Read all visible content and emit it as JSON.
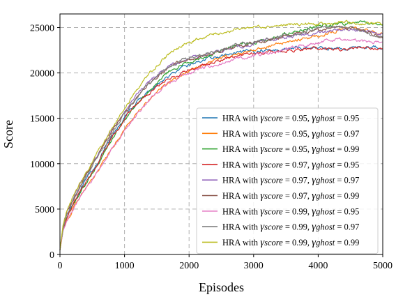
{
  "chart_data": {
    "type": "line",
    "title": "",
    "xlabel": "Episodes",
    "ylabel": "Score",
    "xlim": [
      0,
      5000
    ],
    "ylim": [
      0,
      26500
    ],
    "xticks": [
      0,
      1000,
      2000,
      3000,
      4000,
      5000
    ],
    "xtick_labels": [
      "0",
      "1000",
      "2000",
      "3000",
      "4000",
      "5000"
    ],
    "yticks": [
      0,
      5000,
      10000,
      15000,
      20000,
      25000
    ],
    "ytick_labels": [
      "0",
      "5000",
      "10000",
      "15000",
      "20000",
      "25000"
    ],
    "grid": true,
    "legend_position": "lower-right",
    "x": [
      0,
      50,
      100,
      200,
      300,
      400,
      500,
      600,
      700,
      800,
      900,
      1000,
      1100,
      1200,
      1300,
      1400,
      1500,
      1600,
      1700,
      1800,
      1900,
      2000,
      2200,
      2400,
      2600,
      2800,
      3000,
      3200,
      3400,
      3600,
      3800,
      4000,
      4200,
      4400,
      4600,
      4800,
      5000
    ],
    "series": [
      {
        "name": "HRA with γscore = 0.95,  γghost = 0.95",
        "color": "#1f77b4",
        "values": [
          500,
          3000,
          4200,
          5600,
          6900,
          8100,
          9200,
          10400,
          11600,
          12900,
          14000,
          15100,
          16000,
          16800,
          17500,
          18100,
          18700,
          19200,
          19700,
          20100,
          20500,
          20900,
          21400,
          21700,
          22000,
          22200,
          22400,
          22500,
          22600,
          22700,
          22750,
          22800,
          22700,
          22600,
          22900,
          22800,
          22900
        ]
      },
      {
        "name": "HRA with γscore = 0.95,  γghost = 0.97",
        "color": "#ff7f0e",
        "values": [
          500,
          2600,
          3700,
          5000,
          6200,
          7300,
          8300,
          9400,
          10500,
          11600,
          12700,
          13800,
          14800,
          15700,
          16500,
          17200,
          17900,
          18500,
          19000,
          19400,
          19800,
          20200,
          20900,
          21400,
          21800,
          22200,
          22600,
          22900,
          23200,
          23500,
          23800,
          24100,
          24500,
          24800,
          25000,
          24600,
          24200
        ]
      },
      {
        "name": "HRA with γscore = 0.95,  γghost = 0.99",
        "color": "#2ca02c",
        "values": [
          500,
          2800,
          3900,
          5300,
          6600,
          7800,
          9000,
          10200,
          11400,
          12600,
          13700,
          14800,
          15800,
          16700,
          17500,
          18300,
          19000,
          19600,
          20100,
          20500,
          20900,
          21200,
          21700,
          22200,
          22700,
          23100,
          23400,
          23700,
          24100,
          24500,
          24900,
          25200,
          25300,
          25400,
          25600,
          25500,
          25300
        ]
      },
      {
        "name": "HRA with γscore = 0.97,  γghost = 0.95",
        "color": "#d62728",
        "values": [
          500,
          2900,
          4000,
          5400,
          6700,
          7900,
          9100,
          10300,
          11500,
          12700,
          13800,
          14900,
          15800,
          16600,
          17300,
          17900,
          18500,
          19000,
          19400,
          19700,
          20000,
          20300,
          20800,
          21200,
          21600,
          21900,
          22100,
          22300,
          22400,
          22500,
          22600,
          22700,
          22600,
          22500,
          22800,
          22700,
          22600
        ]
      },
      {
        "name": "HRA with γscore = 0.97,  γghost = 0.97",
        "color": "#9467bd",
        "values": [
          500,
          3300,
          4600,
          6100,
          7500,
          8800,
          10000,
          11200,
          12400,
          13600,
          14700,
          15800,
          16800,
          17700,
          18500,
          19200,
          19800,
          20300,
          20700,
          21000,
          21300,
          21500,
          21900,
          22300,
          22600,
          22900,
          23200,
          23500,
          23800,
          24000,
          24200,
          24400,
          24600,
          24800,
          24700,
          24500,
          24300
        ]
      },
      {
        "name": "HRA with γscore = 0.97,  γghost = 0.99",
        "color": "#8c564b",
        "values": [
          500,
          3200,
          4500,
          6000,
          7400,
          8700,
          9900,
          11100,
          12300,
          13500,
          14600,
          15600,
          16500,
          17400,
          18200,
          18900,
          19500,
          20100,
          20600,
          21000,
          21300,
          21500,
          21900,
          22300,
          22700,
          23000,
          23300,
          23600,
          23900,
          24200,
          24500,
          24700,
          24900,
          25100,
          24800,
          24400,
          23900
        ]
      },
      {
        "name": "HRA with γscore = 0.99,  γghost = 0.95",
        "color": "#e377c2",
        "values": [
          500,
          2500,
          3600,
          4900,
          6100,
          7200,
          8200,
          9300,
          10400,
          11500,
          12600,
          13600,
          14600,
          15500,
          16300,
          17100,
          17800,
          18400,
          18900,
          19300,
          19700,
          20000,
          20500,
          20900,
          21300,
          21600,
          21900,
          22200,
          22500,
          22800,
          23100,
          23400,
          23600,
          23800,
          23600,
          23400,
          23500
        ]
      },
      {
        "name": "HRA with γscore = 0.99,  γghost = 0.97",
        "color": "#7f7f7f",
        "values": [
          500,
          3100,
          4400,
          5800,
          7200,
          8500,
          9700,
          10900,
          12100,
          13300,
          14400,
          15500,
          16500,
          17400,
          18200,
          18900,
          19600,
          20200,
          20700,
          21100,
          21400,
          21600,
          22000,
          22400,
          22800,
          23100,
          23400,
          23700,
          24000,
          24300,
          24600,
          24900,
          25100,
          25200,
          24800,
          24300,
          23800
        ]
      },
      {
        "name": "HRA with γscore = 0.99,  γghost = 0.99",
        "color": "#bcbd22",
        "values": [
          500,
          3300,
          4700,
          6300,
          7700,
          9000,
          10200,
          11500,
          12700,
          13900,
          15000,
          16100,
          17200,
          18200,
          19100,
          20000,
          20800,
          21500,
          22100,
          22600,
          23000,
          23400,
          23900,
          24300,
          24600,
          24900,
          25100,
          25200,
          25200,
          25300,
          25400,
          25300,
          25400,
          25600,
          25400,
          25500,
          25300
        ]
      }
    ],
    "legend": [
      {
        "prefix": "HRA with ",
        "g1": "γ",
        "s1": "score",
        "v1": " = 0.95,  ",
        "g2": "γ",
        "s2": "ghost",
        "v2": " = 0.95"
      },
      {
        "prefix": "HRA with ",
        "g1": "γ",
        "s1": "score",
        "v1": " = 0.95,  ",
        "g2": "γ",
        "s2": "ghost",
        "v2": " = 0.97"
      },
      {
        "prefix": "HRA with ",
        "g1": "γ",
        "s1": "score",
        "v1": " = 0.95,  ",
        "g2": "γ",
        "s2": "ghost",
        "v2": " = 0.99"
      },
      {
        "prefix": "HRA with ",
        "g1": "γ",
        "s1": "score",
        "v1": " = 0.97,  ",
        "g2": "γ",
        "s2": "ghost",
        "v2": " = 0.95"
      },
      {
        "prefix": "HRA with ",
        "g1": "γ",
        "s1": "score",
        "v1": " = 0.97,  ",
        "g2": "γ",
        "s2": "ghost",
        "v2": " = 0.97"
      },
      {
        "prefix": "HRA with ",
        "g1": "γ",
        "s1": "score",
        "v1": " = 0.97,  ",
        "g2": "γ",
        "s2": "ghost",
        "v2": " = 0.99"
      },
      {
        "prefix": "HRA with ",
        "g1": "γ",
        "s1": "score",
        "v1": " = 0.99,  ",
        "g2": "γ",
        "s2": "ghost",
        "v2": " = 0.95"
      },
      {
        "prefix": "HRA with ",
        "g1": "γ",
        "s1": "score",
        "v1": " = 0.99,  ",
        "g2": "γ",
        "s2": "ghost",
        "v2": " = 0.97"
      },
      {
        "prefix": "HRA with ",
        "g1": "γ",
        "s1": "score",
        "v1": " = 0.99,  ",
        "g2": "γ",
        "s2": "ghost",
        "v2": " = 0.99"
      }
    ]
  }
}
